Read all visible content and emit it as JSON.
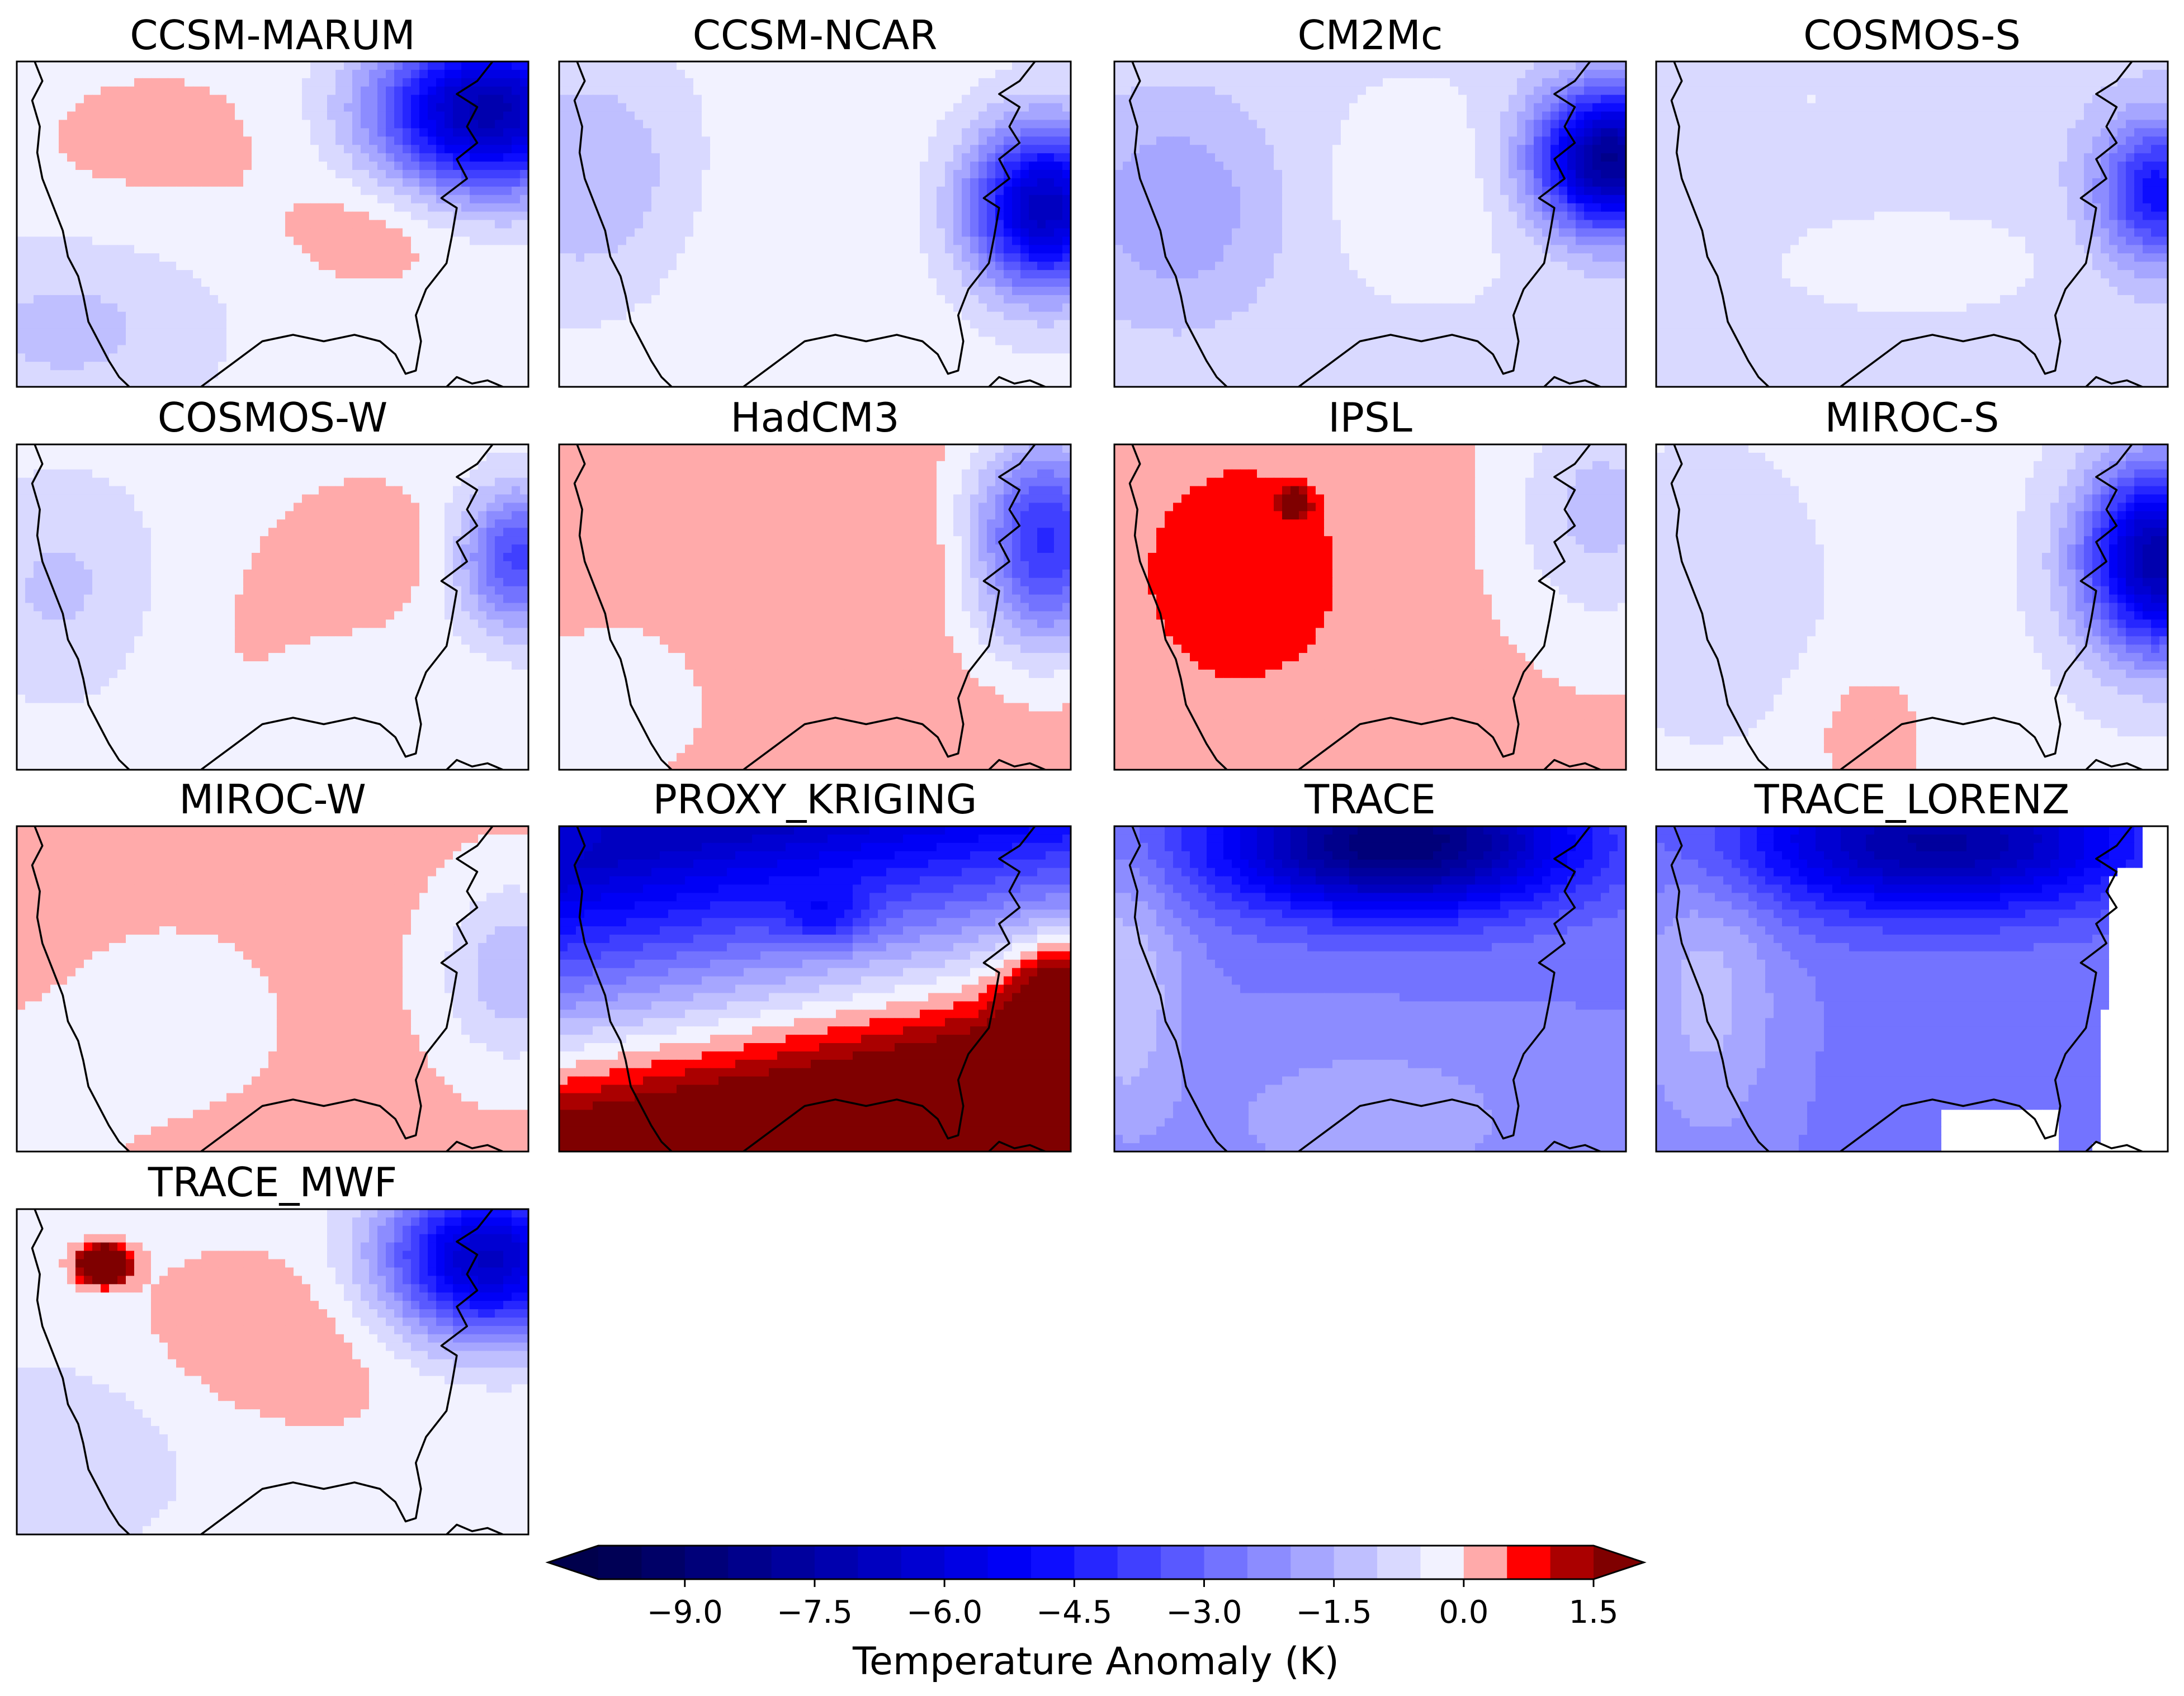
{
  "chart_data": {
    "type": "heatmap",
    "region": "contiguous United States",
    "panels": [
      {
        "title": "CCSM-MARUM",
        "base": -0.25,
        "blobs": [
          {
            "cx": 0.92,
            "cy": 0.15,
            "sx": 0.15,
            "sy": 0.17,
            "v": -7.0
          },
          {
            "cx": 0.28,
            "cy": 0.25,
            "sx": 0.22,
            "sy": 0.2,
            "v": 0.4
          },
          {
            "cx": 0.7,
            "cy": 0.52,
            "sx": 0.12,
            "sy": 0.12,
            "v": 0.6
          },
          {
            "cx": 0.1,
            "cy": 0.82,
            "sx": 0.2,
            "sy": 0.2,
            "v": -0.9
          }
        ]
      },
      {
        "title": "CCSM-NCAR",
        "base": -0.3,
        "blobs": [
          {
            "cx": 0.95,
            "cy": 0.45,
            "sx": 0.1,
            "sy": 0.17,
            "v": -6.5
          },
          {
            "cx": 0.05,
            "cy": 0.35,
            "sx": 0.15,
            "sy": 0.25,
            "v": -1.2
          },
          {
            "cx": 0.45,
            "cy": 0.55,
            "sx": 0.17,
            "sy": 0.3,
            "v": 0.3
          }
        ]
      },
      {
        "title": "CM2Mc",
        "base": -0.6,
        "blobs": [
          {
            "cx": 0.97,
            "cy": 0.3,
            "sx": 0.1,
            "sy": 0.15,
            "v": -7.5
          },
          {
            "cx": 0.12,
            "cy": 0.45,
            "sx": 0.15,
            "sy": 0.25,
            "v": -1.3
          },
          {
            "cx": 0.6,
            "cy": 0.4,
            "sx": 0.15,
            "sy": 0.2,
            "v": 0.5
          }
        ]
      },
      {
        "title": "COSMOS-S",
        "base": -0.8,
        "blobs": [
          {
            "cx": 0.98,
            "cy": 0.4,
            "sx": 0.08,
            "sy": 0.15,
            "v": -4.0
          },
          {
            "cx": 0.5,
            "cy": 0.62,
            "sx": 0.25,
            "sy": 0.15,
            "v": 0.5
          },
          {
            "cx": 0.3,
            "cy": 0.12,
            "sx": 0.12,
            "sy": 0.1,
            "v": 0.3
          }
        ]
      },
      {
        "title": "COSMOS-W",
        "base": -0.2,
        "blobs": [
          {
            "cx": 0.98,
            "cy": 0.35,
            "sx": 0.08,
            "sy": 0.15,
            "v": -3.5
          },
          {
            "cx": 0.1,
            "cy": 0.45,
            "sx": 0.15,
            "sy": 0.25,
            "v": -1.0
          },
          {
            "cx": 0.7,
            "cy": 0.32,
            "sx": 0.12,
            "sy": 0.15,
            "v": 0.5
          },
          {
            "cx": 0.35,
            "cy": 0.55,
            "sx": 0.2,
            "sy": 0.25,
            "v": 0.3
          }
        ]
      },
      {
        "title": "HadCM3",
        "base": 0.3,
        "blobs": [
          {
            "cx": 0.95,
            "cy": 0.3,
            "sx": 0.1,
            "sy": 0.22,
            "v": -4.5
          },
          {
            "cx": 0.75,
            "cy": 0.35,
            "sx": 0.15,
            "sy": 0.1,
            "v": 0.3
          },
          {
            "cx": 0.1,
            "cy": 0.8,
            "sx": 0.15,
            "sy": 0.2,
            "v": -0.6
          }
        ]
      },
      {
        "title": "IPSL",
        "base": 0.1,
        "blobs": [
          {
            "cx": 0.35,
            "cy": 0.18,
            "sx": 0.018,
            "sy": 0.025,
            "v": 4.0
          },
          {
            "cx": 0.25,
            "cy": 0.4,
            "sx": 0.2,
            "sy": 0.35,
            "v": 0.6
          },
          {
            "cx": 0.95,
            "cy": 0.2,
            "sx": 0.12,
            "sy": 0.25,
            "v": -1.3
          }
        ]
      },
      {
        "title": "MIROC-S",
        "base": -0.35,
        "blobs": [
          {
            "cx": 0.98,
            "cy": 0.35,
            "sx": 0.1,
            "sy": 0.2,
            "v": -7.0
          },
          {
            "cx": 0.42,
            "cy": 0.9,
            "sx": 0.08,
            "sy": 0.15,
            "v": 0.7
          },
          {
            "cx": 0.1,
            "cy": 0.45,
            "sx": 0.15,
            "sy": 0.3,
            "v": -0.5
          }
        ]
      },
      {
        "title": "MIROC-W",
        "base": 0.15,
        "blobs": [
          {
            "cx": 0.97,
            "cy": 0.45,
            "sx": 0.1,
            "sy": 0.2,
            "v": -1.5
          },
          {
            "cx": 0.3,
            "cy": 0.6,
            "sx": 0.15,
            "sy": 0.2,
            "v": -0.4
          },
          {
            "cx": 0.05,
            "cy": 0.85,
            "sx": 0.1,
            "sy": 0.15,
            "v": -0.6
          }
        ]
      },
      {
        "title": "PROXY_KRIGING",
        "base": -1.8,
        "grad": {
          "top": -6.5,
          "bottom": 4.5,
          "tilt": 0.3
        },
        "blobs": [
          {
            "cx": 0.52,
            "cy": 0.28,
            "sx": 0.06,
            "sy": 0.06,
            "v": -1.5
          },
          {
            "cx": 0.97,
            "cy": 0.5,
            "sx": 0.07,
            "sy": 0.12,
            "v": 2.0
          }
        ]
      },
      {
        "title": "TRACE",
        "base": -2.5,
        "blobs": [
          {
            "cx": 0.55,
            "cy": 0.05,
            "sx": 0.25,
            "sy": 0.15,
            "v": -6.5
          },
          {
            "cx": 0.02,
            "cy": 0.5,
            "sx": 0.08,
            "sy": 0.3,
            "v": 1.5
          },
          {
            "cx": 0.5,
            "cy": 0.9,
            "sx": 0.2,
            "sy": 0.15,
            "v": 1.0
          }
        ]
      },
      {
        "title": "TRACE_LORENZ",
        "base": -2.6,
        "mask": true,
        "blobs": [
          {
            "cx": 0.55,
            "cy": 0.05,
            "sx": 0.28,
            "sy": 0.15,
            "v": -5.0
          },
          {
            "cx": 0.1,
            "cy": 0.5,
            "sx": 0.1,
            "sy": 0.35,
            "v": 1.3
          }
        ]
      },
      {
        "title": "TRACE_MWF",
        "base": -0.15,
        "blobs": [
          {
            "cx": 0.17,
            "cy": 0.17,
            "sx": 0.03,
            "sy": 0.035,
            "v": 6.0
          },
          {
            "cx": 0.92,
            "cy": 0.15,
            "sx": 0.14,
            "sy": 0.17,
            "v": -6.5
          },
          {
            "cx": 0.5,
            "cy": 0.4,
            "sx": 0.2,
            "sy": 0.18,
            "v": 0.6
          },
          {
            "cx": 0.1,
            "cy": 0.75,
            "sx": 0.2,
            "sy": 0.25,
            "v": -0.7
          }
        ]
      }
    ],
    "colorbar": {
      "label": "Temperature Anomaly (K)",
      "vmin": -10.0,
      "vmax": 1.5,
      "step": 0.5,
      "extend": "both",
      "ticks": [
        "−9.0",
        "−7.5",
        "−6.0",
        "−4.5",
        "−3.0",
        "−1.5",
        "0.0",
        "1.5"
      ],
      "tick_values": [
        -9.0,
        -7.5,
        -6.0,
        -4.5,
        -3.0,
        -1.5,
        0.0,
        1.5
      ],
      "cmap": "seismic",
      "under_color": "#00004c",
      "over_color": "#7f0000"
    }
  }
}
